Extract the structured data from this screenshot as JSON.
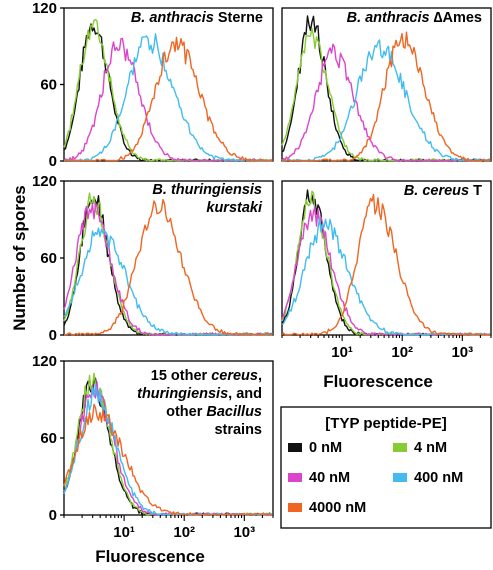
{
  "chart_data": {
    "type": "line",
    "y_axis_label": "Number of spores",
    "x_axis_label": "Fluorescence",
    "x_scale": "log",
    "x_range": [
      1,
      3000
    ],
    "y_range": [
      0,
      120
    ],
    "legend": {
      "title": "[TYP peptide-PE]",
      "entries": [
        {
          "label": "0 nM",
          "color": "#111111"
        },
        {
          "label": "4 nM",
          "color": "#88cc33"
        },
        {
          "label": "40 nM",
          "color": "#dd44cc"
        },
        {
          "label": "400 nM",
          "color": "#44bbee"
        },
        {
          "label": "4000 nM",
          "color": "#ee6622"
        }
      ]
    },
    "panels": [
      {
        "title_lines": [
          [
            {
              "text": "B. anthracis",
              "italic": true
            },
            {
              "text": " Sterne",
              "italic": false
            }
          ]
        ],
        "yticks": [
          "0",
          "60",
          "120"
        ],
        "xticks": [],
        "series": [
          {
            "name": "0 nM",
            "peak_x": 3.0,
            "peak_y": 108,
            "width": 0.25
          },
          {
            "name": "4 nM",
            "peak_x": 3.0,
            "peak_y": 106,
            "width": 0.27
          },
          {
            "name": "40 nM",
            "peak_x": 8.0,
            "peak_y": 92,
            "width": 0.32
          },
          {
            "name": "400 nM",
            "peak_x": 25,
            "peak_y": 95,
            "width": 0.4
          },
          {
            "name": "4000 nM",
            "peak_x": 70,
            "peak_y": 93,
            "width": 0.38
          }
        ]
      },
      {
        "title_lines": [
          [
            {
              "text": "B. anthracis",
              "italic": true
            },
            {
              "text": " ∆Ames",
              "italic": false
            }
          ]
        ],
        "yticks": [],
        "xticks": [],
        "series": [
          {
            "name": "0 nM",
            "peak_x": 3.0,
            "peak_y": 110,
            "width": 0.24
          },
          {
            "name": "4 nM",
            "peak_x": 3.0,
            "peak_y": 100,
            "width": 0.27
          },
          {
            "name": "40 nM",
            "peak_x": 7.0,
            "peak_y": 85,
            "width": 0.33
          },
          {
            "name": "400 nM",
            "peak_x": 40,
            "peak_y": 90,
            "width": 0.42
          },
          {
            "name": "4000 nM",
            "peak_x": 100,
            "peak_y": 95,
            "width": 0.35
          }
        ]
      },
      {
        "title_lines": [
          [
            {
              "text": "B. thuringiensis",
              "italic": true
            }
          ],
          [
            {
              "text": "kurstaki",
              "italic": true
            }
          ]
        ],
        "yticks": [
          "0",
          "60",
          "120"
        ],
        "xticks": [],
        "series": [
          {
            "name": "0 nM",
            "peak_x": 3.0,
            "peak_y": 108,
            "width": 0.24
          },
          {
            "name": "4 nM",
            "peak_x": 3.0,
            "peak_y": 104,
            "width": 0.26
          },
          {
            "name": "40 nM",
            "peak_x": 2.8,
            "peak_y": 98,
            "width": 0.3
          },
          {
            "name": "400 nM",
            "peak_x": 4.0,
            "peak_y": 80,
            "width": 0.38
          },
          {
            "name": "4000 nM",
            "peak_x": 35,
            "peak_y": 100,
            "width": 0.38
          }
        ]
      },
      {
        "title_lines": [
          [
            {
              "text": "B. cereus",
              "italic": true
            },
            {
              "text": " T",
              "italic": false
            }
          ]
        ],
        "yticks": [],
        "xticks": [
          "10¹",
          "10²",
          "10³"
        ],
        "series": [
          {
            "name": "0 nM",
            "peak_x": 3.0,
            "peak_y": 110,
            "width": 0.24
          },
          {
            "name": "4 nM",
            "peak_x": 3.0,
            "peak_y": 105,
            "width": 0.26
          },
          {
            "name": "40 nM",
            "peak_x": 3.2,
            "peak_y": 95,
            "width": 0.3
          },
          {
            "name": "400 nM",
            "peak_x": 5.0,
            "peak_y": 85,
            "width": 0.38
          },
          {
            "name": "4000 nM",
            "peak_x": 35,
            "peak_y": 102,
            "width": 0.34
          }
        ]
      },
      {
        "title_lines": [
          [
            {
              "text": "15 other ",
              "italic": false
            },
            {
              "text": "cereus",
              "italic": true
            },
            {
              "text": ",",
              "italic": false
            }
          ],
          [
            {
              "text": "thuringiensis",
              "italic": true
            },
            {
              "text": ", and",
              "italic": false
            }
          ],
          [
            {
              "text": "other ",
              "italic": false
            },
            {
              "text": "Bacillus",
              "italic": true
            }
          ],
          [
            {
              "text": "strains",
              "italic": false
            }
          ]
        ],
        "yticks": [
          "0",
          "60",
          "120"
        ],
        "xticks": [
          "10¹",
          "10²",
          "10³"
        ],
        "series": [
          {
            "name": "0 nM",
            "peak_x": 2.9,
            "peak_y": 103,
            "width": 0.28
          },
          {
            "name": "4 nM",
            "peak_x": 2.9,
            "peak_y": 104,
            "width": 0.29
          },
          {
            "name": "40 nM",
            "peak_x": 3.1,
            "peak_y": 97,
            "width": 0.31
          },
          {
            "name": "400 nM",
            "peak_x": 3.3,
            "peak_y": 92,
            "width": 0.33
          },
          {
            "name": "4000 nM",
            "peak_x": 3.5,
            "peak_y": 80,
            "width": 0.42
          }
        ]
      }
    ]
  }
}
